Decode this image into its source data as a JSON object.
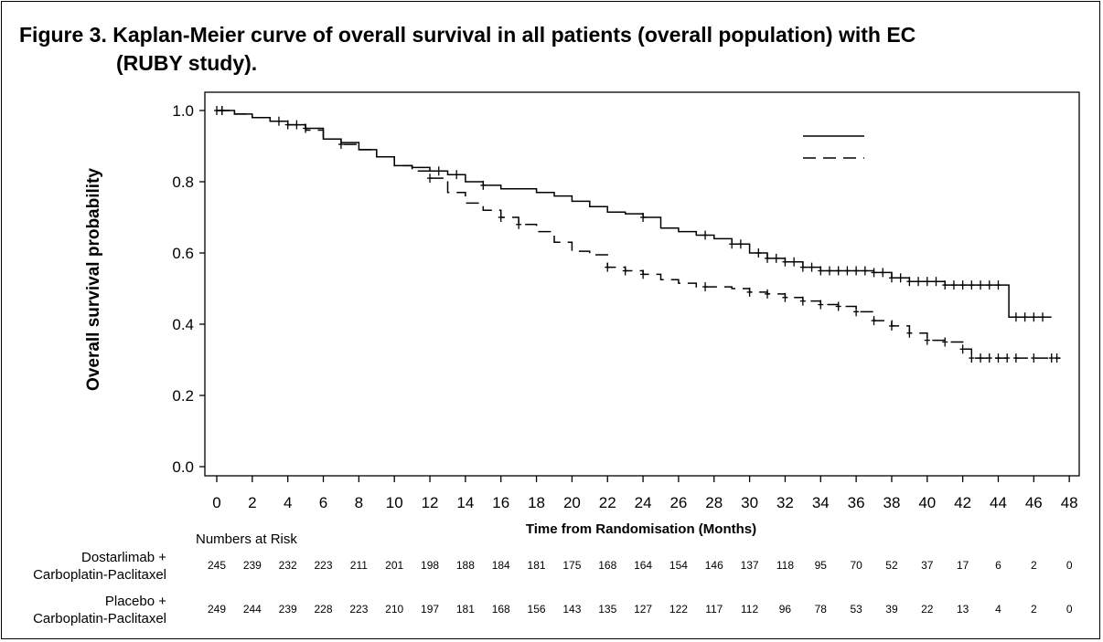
{
  "figure": {
    "title_line1": "Figure 3. Kaplan-Meier curve of overall survival in all patients (overall population) with EC",
    "title_line2": "(RUBY study)."
  },
  "chart_data": {
    "type": "line",
    "xlabel": "Time from Randomisation (Months)",
    "ylabel": "Overall survival probability",
    "xlim": [
      0,
      48
    ],
    "ylim": [
      0,
      1
    ],
    "xticks": [
      0,
      2,
      4,
      6,
      8,
      10,
      12,
      14,
      16,
      18,
      20,
      22,
      24,
      26,
      28,
      30,
      32,
      34,
      36,
      38,
      40,
      42,
      44,
      46,
      48
    ],
    "yticks": [
      0.0,
      0.2,
      0.4,
      0.6,
      0.8,
      1.0
    ],
    "ytick_labels": [
      "0.0",
      "0.2",
      "0.4",
      "0.6",
      "0.8",
      "1.0"
    ],
    "grid": false,
    "legend": {
      "placement": "top-right",
      "entries": [
        {
          "style": "solid",
          "label": ""
        },
        {
          "style": "dashed",
          "label": ""
        }
      ]
    },
    "series": [
      {
        "line_style": "solid",
        "points": [
          [
            0,
            1.0
          ],
          [
            1,
            0.99
          ],
          [
            2,
            0.98
          ],
          [
            3,
            0.97
          ],
          [
            4,
            0.96
          ],
          [
            5,
            0.95
          ],
          [
            6,
            0.92
          ],
          [
            7,
            0.91
          ],
          [
            8,
            0.89
          ],
          [
            9,
            0.87
          ],
          [
            10,
            0.845
          ],
          [
            11,
            0.84
          ],
          [
            12,
            0.83
          ],
          [
            13,
            0.82
          ],
          [
            14,
            0.8
          ],
          [
            15,
            0.79
          ],
          [
            16,
            0.78
          ],
          [
            18,
            0.77
          ],
          [
            19,
            0.76
          ],
          [
            20,
            0.745
          ],
          [
            21,
            0.73
          ],
          [
            22,
            0.715
          ],
          [
            23,
            0.71
          ],
          [
            24,
            0.7
          ],
          [
            25,
            0.67
          ],
          [
            26,
            0.66
          ],
          [
            27,
            0.65
          ],
          [
            28,
            0.64
          ],
          [
            29,
            0.625
          ],
          [
            30,
            0.6
          ],
          [
            31,
            0.585
          ],
          [
            32,
            0.575
          ],
          [
            33,
            0.56
          ],
          [
            34,
            0.55
          ],
          [
            36,
            0.55
          ],
          [
            37,
            0.545
          ],
          [
            38,
            0.53
          ],
          [
            39,
            0.52
          ],
          [
            41,
            0.51
          ],
          [
            44.6,
            0.51
          ],
          [
            44.6,
            0.42
          ],
          [
            47,
            0.42
          ]
        ],
        "censor_x": [
          0,
          0.3,
          3.5,
          4.5,
          5,
          12.5,
          13.5,
          15,
          24,
          27.5,
          29,
          29.5,
          30.5,
          31,
          31.5,
          32,
          32.5,
          33,
          33.5,
          34,
          34.5,
          35,
          35.5,
          36,
          36.5,
          37,
          37.5,
          38,
          38.5,
          39,
          39.5,
          40,
          40.5,
          41,
          41.5,
          42,
          42.5,
          43,
          43.5,
          44,
          45,
          45.5,
          46,
          46.5
        ]
      },
      {
        "line_style": "dashed",
        "points": [
          [
            0,
            1.0
          ],
          [
            1,
            0.99
          ],
          [
            2,
            0.98
          ],
          [
            3,
            0.97
          ],
          [
            4,
            0.96
          ],
          [
            5,
            0.945
          ],
          [
            6,
            0.92
          ],
          [
            7,
            0.905
          ],
          [
            8,
            0.89
          ],
          [
            9,
            0.87
          ],
          [
            10,
            0.845
          ],
          [
            11,
            0.83
          ],
          [
            12,
            0.81
          ],
          [
            13,
            0.77
          ],
          [
            14,
            0.74
          ],
          [
            15,
            0.72
          ],
          [
            16,
            0.7
          ],
          [
            17,
            0.68
          ],
          [
            18,
            0.66
          ],
          [
            19,
            0.63
          ],
          [
            20,
            0.605
          ],
          [
            21,
            0.595
          ],
          [
            22,
            0.56
          ],
          [
            23,
            0.55
          ],
          [
            24,
            0.54
          ],
          [
            25,
            0.525
          ],
          [
            26,
            0.515
          ],
          [
            27,
            0.505
          ],
          [
            29,
            0.5
          ],
          [
            30,
            0.49
          ],
          [
            31,
            0.485
          ],
          [
            32,
            0.475
          ],
          [
            33,
            0.465
          ],
          [
            34,
            0.455
          ],
          [
            35,
            0.45
          ],
          [
            36,
            0.435
          ],
          [
            37,
            0.41
          ],
          [
            38,
            0.395
          ],
          [
            39,
            0.375
          ],
          [
            40,
            0.355
          ],
          [
            41,
            0.35
          ],
          [
            42,
            0.33
          ],
          [
            42.5,
            0.305
          ],
          [
            47.5,
            0.305
          ]
        ],
        "censor_x": [
          0.3,
          4,
          7,
          12,
          16,
          17,
          22,
          23,
          24,
          27.5,
          30,
          31,
          32,
          33,
          34,
          35,
          36,
          37,
          38,
          39,
          40,
          41,
          42,
          42.5,
          43,
          43.5,
          44,
          44.5,
          45,
          46,
          47,
          47.3
        ]
      }
    ]
  },
  "risk_table": {
    "title": "Numbers at Risk",
    "arms": [
      {
        "label_line1": "Dostarlimab +",
        "label_line2": "Carboplatin-Paclitaxel",
        "values": [
          "245",
          "239",
          "232",
          "223",
          "211",
          "201",
          "198",
          "188",
          "184",
          "181",
          "175",
          "168",
          "164",
          "154",
          "146",
          "137",
          "118",
          "95",
          "70",
          "52",
          "37",
          "17",
          "6",
          "2",
          "0"
        ]
      },
      {
        "label_line1": "Placebo +",
        "label_line2": "Carboplatin-Paclitaxel",
        "values": [
          "249",
          "244",
          "239",
          "228",
          "223",
          "210",
          "197",
          "181",
          "168",
          "156",
          "143",
          "135",
          "127",
          "122",
          "117",
          "112",
          "96",
          "78",
          "53",
          "39",
          "22",
          "13",
          "4",
          "2",
          "0"
        ]
      }
    ]
  }
}
